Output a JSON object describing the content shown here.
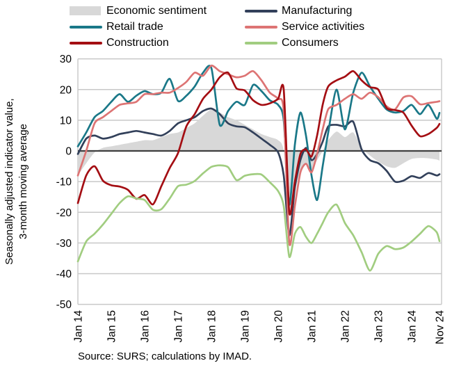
{
  "colors": {
    "background": "#ffffff",
    "grid": "#c8c8c8",
    "zero_line": "#3f3f3f",
    "text": "#000000"
  },
  "chart_data": {
    "type": "line",
    "title": "",
    "ylabel_line1": "Seasonally adjusted indicator value,",
    "ylabel_line2": "3-month moving average",
    "source": "Source: SURS; calculations by IMAD.",
    "x_unit": "months since Jan 2014",
    "ylim": [
      -50,
      30
    ],
    "grid": true,
    "legend_position": "top",
    "y_ticks": [
      30,
      20,
      10,
      0,
      -10,
      -20,
      -30,
      -40,
      -50
    ],
    "x_tick_months": [
      0,
      12,
      24,
      36,
      48,
      60,
      72,
      84,
      96,
      108,
      120,
      130
    ],
    "x_tick_labels": [
      "Jan 14",
      "Jan 15",
      "Jan 16",
      "Jan 17",
      "Jan 18",
      "Jan 19",
      "Jan 20",
      "Jan 21",
      "Jan 22",
      "Jan 23",
      "Jan 24",
      "Nov 24"
    ],
    "x": [
      0,
      3,
      6,
      9,
      12,
      15,
      18,
      21,
      24,
      27,
      30,
      33,
      36,
      39,
      42,
      45,
      48,
      51,
      54,
      57,
      60,
      63,
      66,
      69,
      72,
      74,
      76,
      78,
      80,
      82,
      84,
      86,
      88,
      90,
      93,
      96,
      99,
      102,
      105,
      108,
      111,
      114,
      117,
      120,
      123,
      126,
      129,
      130
    ],
    "series": [
      {
        "name": "Economic sentiment",
        "type": "area",
        "color": "#d8d8d8",
        "values": [
          -8,
          -4,
          -0.5,
          1,
          1.5,
          2,
          2.5,
          3,
          3.5,
          3.5,
          4.5,
          5.5,
          6,
          7.5,
          9,
          11.5,
          13.5,
          12.5,
          11,
          10,
          8.5,
          7,
          5.5,
          4.5,
          3.5,
          0,
          -21,
          -13,
          -6.5,
          -4.5,
          -6,
          -3,
          0,
          3.5,
          6.3,
          4.5,
          6,
          1,
          -1.5,
          -3.5,
          -5,
          -5.5,
          -4,
          -2.6,
          -2.3,
          -2.4,
          -2.8,
          -3.2
        ]
      },
      {
        "name": "Manufacturing",
        "type": "line",
        "color": "#32405a",
        "values": [
          -1,
          4,
          5,
          4,
          4.5,
          5.5,
          6,
          6.5,
          6,
          5.5,
          5,
          6.5,
          9,
          10,
          11,
          13,
          13.8,
          12,
          9,
          8,
          7.7,
          6,
          4,
          2,
          -0.5,
          -8,
          -27.5,
          -12,
          -3,
          1,
          -3,
          -1,
          3,
          8,
          8.5,
          8,
          9.5,
          0.5,
          -3,
          -4,
          -6.5,
          -10,
          -9.7,
          -8.2,
          -8.8,
          -7.2,
          -8,
          -7.6
        ]
      },
      {
        "name": "Retail trade",
        "type": "line",
        "color": "#1a7888",
        "values": [
          1.5,
          6,
          11,
          13,
          16,
          18.5,
          16,
          18,
          19.5,
          18.5,
          19,
          23.5,
          16.3,
          18,
          21,
          25.5,
          27,
          8.5,
          13,
          16,
          15,
          21.5,
          19.5,
          16.5,
          15,
          10,
          -17.5,
          2,
          12.5,
          5,
          -8,
          -16,
          -5,
          6,
          20,
          7,
          19,
          25.5,
          21,
          17,
          13.5,
          12.5,
          13,
          15,
          12,
          15,
          10.5,
          12.4
        ]
      },
      {
        "name": "Service activities",
        "type": "line",
        "color": "#dd7474",
        "values": [
          -8,
          0,
          9,
          11,
          13,
          15,
          15.5,
          16,
          18.5,
          18.5,
          19,
          19,
          20.5,
          22.5,
          25.5,
          24.5,
          27.8,
          26,
          25,
          24,
          24.5,
          26,
          23,
          19,
          17,
          13,
          -30,
          -18,
          -7,
          -4.2,
          -7,
          -1,
          7,
          13.6,
          15,
          17,
          18.5,
          17,
          19,
          17.5,
          14.5,
          13.5,
          17.4,
          17.8,
          15.2,
          15.6,
          16,
          16.2
        ]
      },
      {
        "name": "Construction",
        "type": "line",
        "color": "#a40e13",
        "values": [
          -17,
          -8,
          -5,
          -9.7,
          -11.2,
          -11.6,
          -12.7,
          -15.6,
          -14.4,
          -17.4,
          -11.5,
          -5.6,
          -0.7,
          8,
          12,
          17,
          20,
          24,
          25.5,
          20.4,
          19.7,
          16.5,
          15,
          15.5,
          17,
          20,
          -20,
          -10,
          -1,
          0.5,
          -1.8,
          5,
          15,
          21,
          23,
          24.2,
          26,
          23,
          20.8,
          20,
          14,
          13.3,
          12.5,
          8.2,
          4.8,
          5.5,
          7.5,
          8.8
        ]
      },
      {
        "name": "Consumers",
        "type": "line",
        "color": "#a1cd80",
        "values": [
          -36,
          -29.5,
          -27,
          -24,
          -20.5,
          -17,
          -14.8,
          -15.5,
          -16,
          -19.2,
          -19,
          -15.5,
          -11.5,
          -11,
          -9.8,
          -7.3,
          -5.2,
          -4.7,
          -5.3,
          -9.5,
          -8.1,
          -7.6,
          -7.7,
          -10.2,
          -13.1,
          -18,
          -34.5,
          -27,
          -24.8,
          -28,
          -30,
          -27,
          -23.5,
          -20,
          -17.5,
          -23.5,
          -27.5,
          -33,
          -39,
          -33.5,
          -31,
          -32,
          -31.5,
          -29.5,
          -27,
          -24.5,
          -26.5,
          -29.4
        ]
      }
    ],
    "legend_columns": [
      [
        "Economic sentiment",
        "Retail trade",
        "Construction"
      ],
      [
        "Manufacturing",
        "Service activities",
        "Consumers"
      ]
    ]
  }
}
